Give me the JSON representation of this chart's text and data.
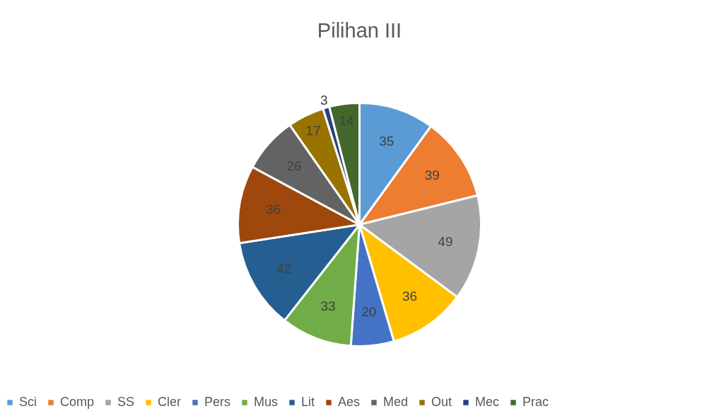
{
  "chart_data": {
    "type": "pie",
    "title": "Pilihan III",
    "categories": [
      "Sci",
      "Comp",
      "SS",
      "Cler",
      "Pers",
      "Mus",
      "Lit",
      "Aes",
      "Med",
      "Out",
      "Mec",
      "Prac"
    ],
    "values": [
      35,
      39,
      49,
      36,
      20,
      33,
      42,
      36,
      26,
      17,
      3,
      14
    ],
    "colors": [
      "#5b9bd5",
      "#ed7d31",
      "#a5a5a5",
      "#ffc000",
      "#4472c4",
      "#70ad47",
      "#255e91",
      "#9e480e",
      "#636363",
      "#997300",
      "#264478",
      "#43682b"
    ],
    "data_labels": true,
    "legend": "bottom"
  }
}
